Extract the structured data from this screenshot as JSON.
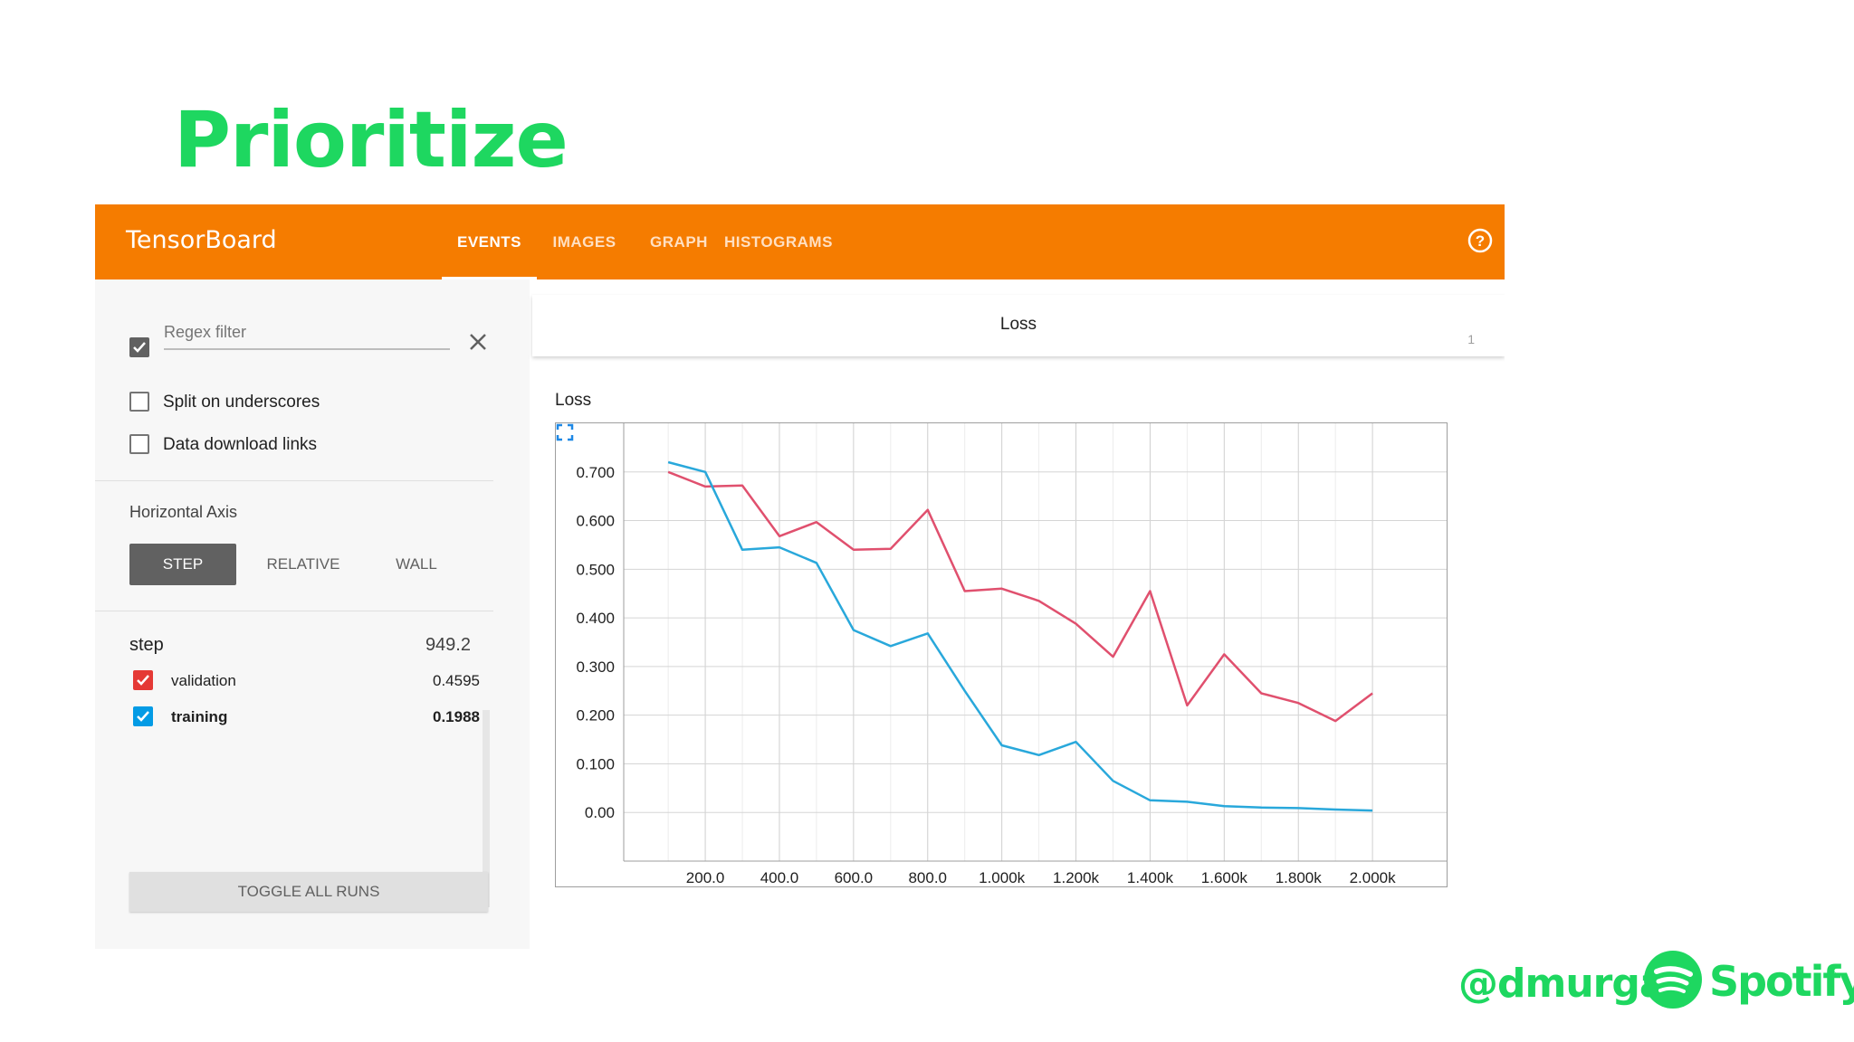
{
  "slide": {
    "title": "Prioritize",
    "handle": "@dmurga",
    "brand_word": "Spotify",
    "brand_reg": "®",
    "accent": "#1ed760"
  },
  "app": {
    "name": "TensorBoard",
    "bar_color": "#f57c00",
    "tabs": [
      {
        "label": "EVENTS",
        "active": true
      },
      {
        "label": "IMAGES",
        "active": false
      },
      {
        "label": "GRAPH",
        "active": false
      },
      {
        "label": "HISTOGRAMS",
        "active": false
      }
    ],
    "help_icon": "help-circle-icon"
  },
  "sidebar": {
    "regex_filter": {
      "placeholder": "Regex filter",
      "value": "",
      "checked": true
    },
    "options": [
      {
        "label": "Split on underscores",
        "checked": false
      },
      {
        "label": "Data download links",
        "checked": false
      }
    ],
    "horizontal_axis": {
      "heading": "Horizontal Axis",
      "buttons": [
        {
          "label": "STEP",
          "active": true
        },
        {
          "label": "RELATIVE",
          "active": false
        },
        {
          "label": "WALL",
          "active": false
        }
      ]
    },
    "tooltip": {
      "label": "step",
      "value": "949.2"
    },
    "runs": [
      {
        "name": "validation",
        "value": "0.4595",
        "color": "#e53935",
        "checked": true
      },
      {
        "name": "training",
        "value": "0.1988",
        "color": "#039be5",
        "checked": true
      }
    ],
    "toggle_label": "TOGGLE ALL RUNS"
  },
  "card": {
    "header_title": "Loss",
    "count": "1",
    "chart_title": "Loss"
  },
  "chart_data": {
    "type": "line",
    "title": "Loss",
    "xlabel": "",
    "ylabel": "",
    "xlim": [
      -20,
      2200
    ],
    "ylim": [
      -0.1,
      0.8
    ],
    "x_ticks": [
      200,
      400,
      600,
      800,
      1000,
      1200,
      1400,
      1600,
      1800,
      2000
    ],
    "x_tick_labels": [
      "200.0",
      "400.0",
      "600.0",
      "800.0",
      "1.000k",
      "1.200k",
      "1.400k",
      "1.600k",
      "1.800k",
      "2.000k"
    ],
    "y_ticks": [
      0,
      0.1,
      0.2,
      0.3,
      0.4,
      0.5,
      0.6,
      0.7
    ],
    "y_tick_labels": [
      "0.00",
      "0.100",
      "0.200",
      "0.300",
      "0.400",
      "0.500",
      "0.600",
      "0.700"
    ],
    "grid": true,
    "series": [
      {
        "name": "validation",
        "color": "#e0506e",
        "x": [
          100,
          200,
          300,
          400,
          500,
          600,
          700,
          800,
          900,
          1000,
          1100,
          1200,
          1300,
          1400,
          1500,
          1600,
          1700,
          1800,
          1900,
          2000
        ],
        "values": [
          0.7,
          0.67,
          0.672,
          0.568,
          0.597,
          0.54,
          0.542,
          0.622,
          0.455,
          0.46,
          0.435,
          0.388,
          0.32,
          0.455,
          0.22,
          0.325,
          0.245,
          0.225,
          0.188,
          0.245
        ]
      },
      {
        "name": "training",
        "color": "#29a8db",
        "x": [
          100,
          200,
          300,
          400,
          500,
          600,
          700,
          800,
          900,
          1000,
          1100,
          1200,
          1300,
          1400,
          1500,
          1600,
          1700,
          1800,
          1900,
          2000
        ],
        "values": [
          0.72,
          0.7,
          0.54,
          0.545,
          0.513,
          0.375,
          0.342,
          0.368,
          0.25,
          0.138,
          0.118,
          0.145,
          0.065,
          0.025,
          0.022,
          0.013,
          0.01,
          0.009,
          0.006,
          0.004
        ]
      }
    ]
  }
}
